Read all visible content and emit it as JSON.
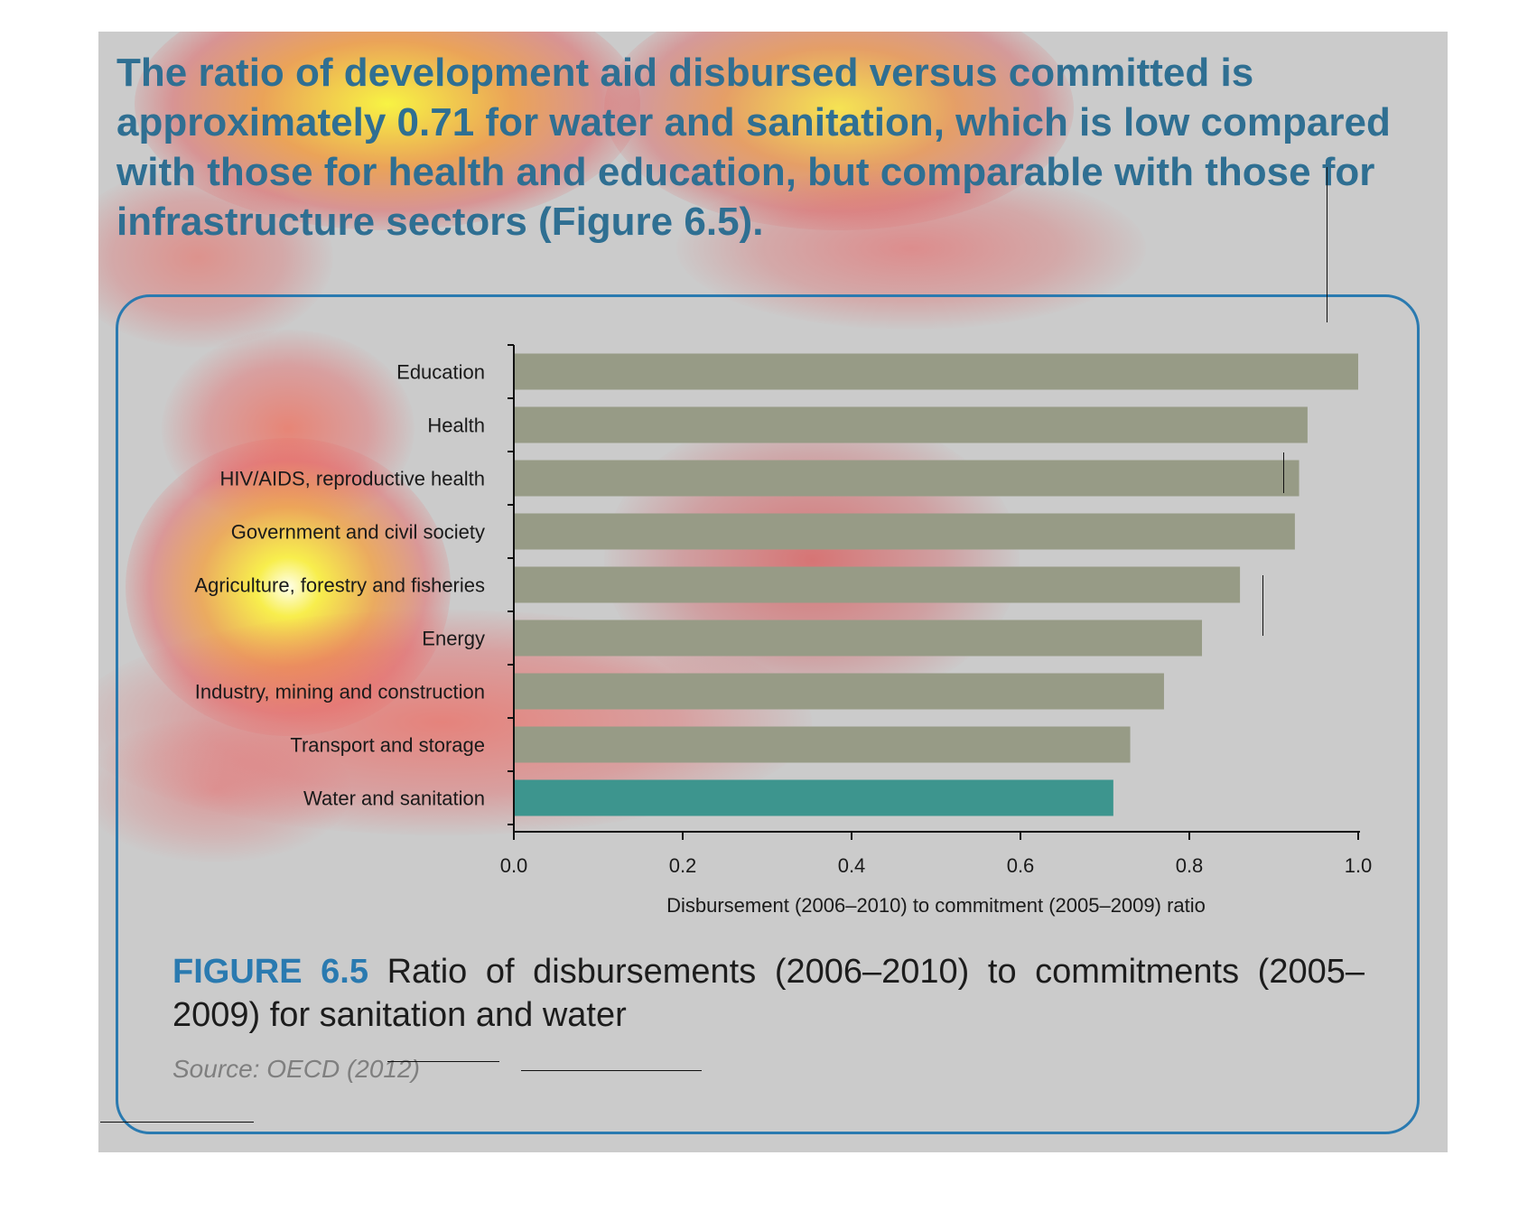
{
  "intro_text": "The ratio of development aid disbursed versus committed is approximately 0.71 for water and sanitation, which is low compared with those for health and education, but comparable with those for infrastructure sectors (Figure 6.5).",
  "caption": {
    "label": "FIGURE 6.5",
    "text": "Ratio of disbursements (2006–2010) to commitments (2005–2009) for sanitation and water"
  },
  "source": "Source: OECD (2012)",
  "colors": {
    "panel_background": "#cbcbcb",
    "bar_default": "#979b86",
    "bar_highlight": "#3d958e",
    "frame_border": "#2a7ab0",
    "text_blue": "#2f6f92"
  },
  "chart_data": {
    "type": "bar",
    "orientation": "horizontal",
    "categories": [
      "Education",
      "Health",
      "HIV/AIDS, reproductive health",
      "Government and civil society",
      "Agriculture, forestry and fisheries",
      "Energy",
      "Industry, mining and construction",
      "Transport and storage",
      "Water and sanitation"
    ],
    "values": [
      1.0,
      0.94,
      0.93,
      0.925,
      0.86,
      0.815,
      0.77,
      0.73,
      0.71
    ],
    "highlight": "Water and sanitation",
    "xlabel": "Disbursement (2006–2010) to commitment (2005–2009) ratio",
    "xlim": [
      0.0,
      1.0
    ],
    "xticks": [
      "0.0",
      "0.2",
      "0.4",
      "0.6",
      "0.8",
      "1.0"
    ],
    "grid": false,
    "legend": "none"
  }
}
